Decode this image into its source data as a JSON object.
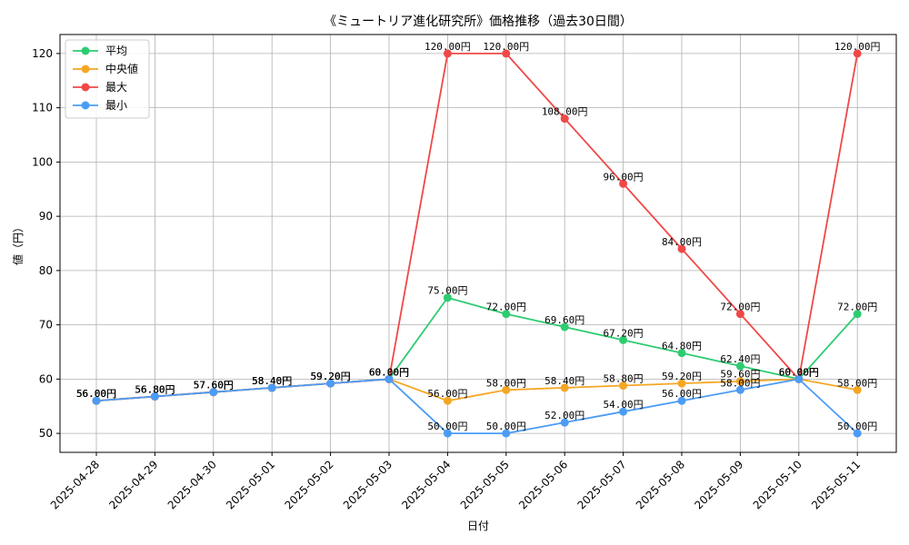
{
  "chart_data": {
    "type": "line",
    "title": "《ミュートリア進化研究所》価格推移（過去30日間）",
    "xlabel": "日付",
    "ylabel": "値（円）",
    "ylim": [
      46.5,
      123.5
    ],
    "yticks": [
      50,
      60,
      70,
      80,
      90,
      100,
      110,
      120
    ],
    "grid": true,
    "legend_position": "top-left",
    "value_suffix": "円",
    "categories": [
      "2025-04-28",
      "2025-04-29",
      "2025-04-30",
      "2025-05-01",
      "2025-05-02",
      "2025-05-03",
      "2025-05-04",
      "2025-05-05",
      "2025-05-06",
      "2025-05-07",
      "2025-05-08",
      "2025-05-09",
      "2025-05-10",
      "2025-05-11"
    ],
    "series": [
      {
        "name": "平均",
        "color": "#2ecc71",
        "values": [
          56.0,
          56.8,
          57.6,
          58.4,
          59.2,
          60.0,
          75.0,
          72.0,
          69.6,
          67.2,
          64.8,
          62.4,
          60.0,
          72.0
        ]
      },
      {
        "name": "中央値",
        "color": "#f5a623",
        "values": [
          56.0,
          56.8,
          57.6,
          58.4,
          59.2,
          60.0,
          56.0,
          58.0,
          58.4,
          58.8,
          59.2,
          59.6,
          60.0,
          58.0
        ]
      },
      {
        "name": "最大",
        "color": "#f04848",
        "values": [
          56.0,
          56.8,
          57.6,
          58.4,
          59.2,
          60.0,
          120.0,
          120.0,
          108.0,
          96.0,
          84.0,
          72.0,
          60.0,
          120.0
        ]
      },
      {
        "name": "最小",
        "color": "#4c9cf5",
        "values": [
          56.0,
          56.8,
          57.6,
          58.4,
          59.2,
          60.0,
          50.0,
          50.0,
          52.0,
          54.0,
          56.0,
          58.0,
          60.0,
          50.0
        ]
      }
    ]
  }
}
